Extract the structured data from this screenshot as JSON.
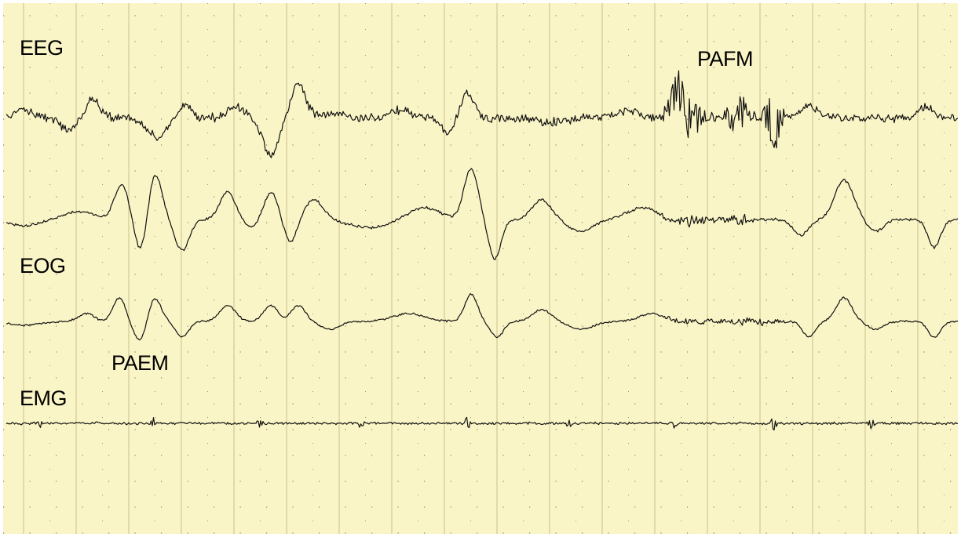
{
  "labels": {
    "eeg": "EEG",
    "pafm": "PAFM",
    "eog": "EOG",
    "paem": "PAEM",
    "emg": "EMG"
  }
}
